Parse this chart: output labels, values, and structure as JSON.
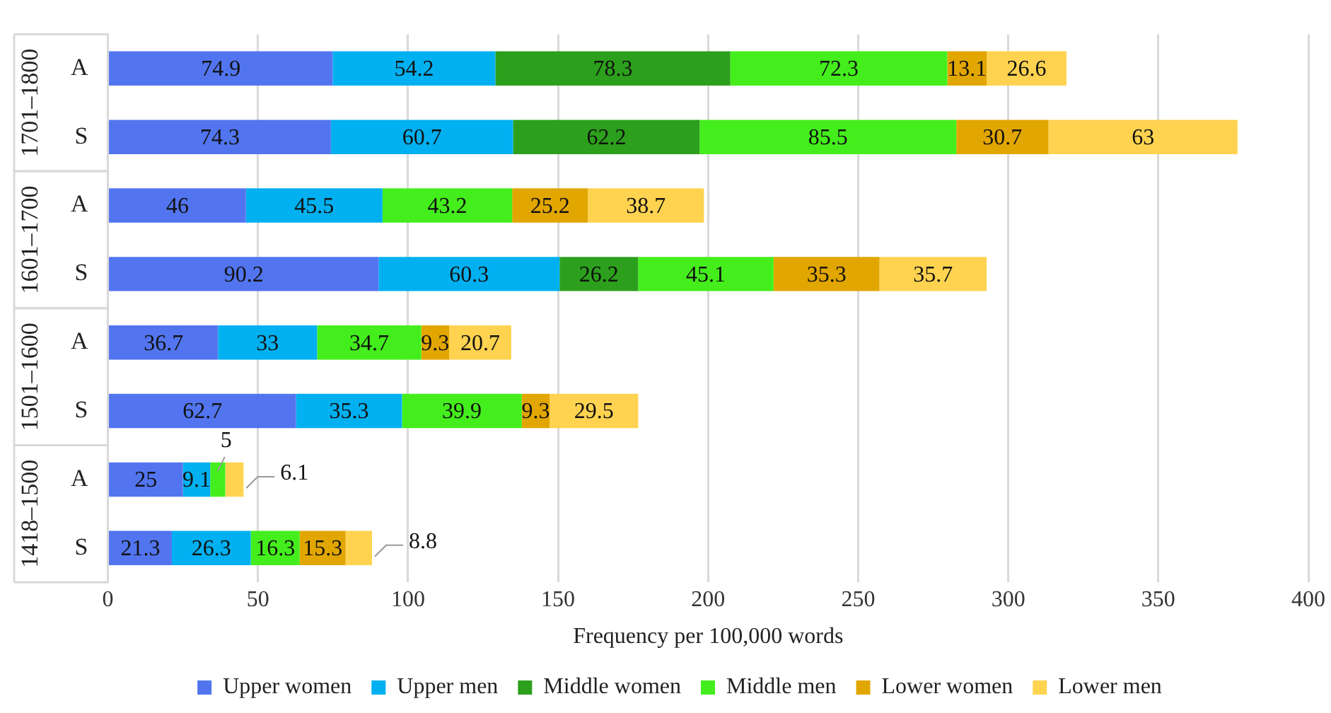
{
  "chart_data": {
    "type": "bar",
    "orientation": "horizontal",
    "stacked": true,
    "data_labels": true,
    "grid": "x",
    "legend": "bottom",
    "xlabel": "Frequency per 100,000 words",
    "categories": [
      "A",
      "S",
      "A",
      "S",
      "A",
      "S",
      "A",
      "S"
    ],
    "annotations": [
      "1701–1800",
      "1601–1700",
      "1501–1600",
      "1418–1500"
    ],
    "xlim": [
      0,
      400
    ],
    "xticks": [
      0,
      50,
      100,
      150,
      200,
      250,
      300,
      350,
      400
    ],
    "series": [
      {
        "name": "Upper women",
        "color": "#5275ef",
        "values": [
          74.9,
          74.3,
          46,
          90.2,
          36.7,
          62.7,
          25,
          21.3
        ]
      },
      {
        "name": "Upper men",
        "color": "#00b0f0",
        "values": [
          54.2,
          60.7,
          45.5,
          60.3,
          33,
          35.3,
          9.1,
          26.3
        ]
      },
      {
        "name": "Middle women",
        "color": "#2ca01c",
        "values": [
          78.3,
          62.2,
          null,
          26.2,
          null,
          null,
          null,
          null
        ]
      },
      {
        "name": "Middle men",
        "color": "#44ee1c",
        "values": [
          72.3,
          85.5,
          43.2,
          45.1,
          34.7,
          39.9,
          5,
          16.3
        ]
      },
      {
        "name": "Lower women",
        "color": "#e2a600",
        "values": [
          13.1,
          30.7,
          25.2,
          35.3,
          9.3,
          9.3,
          null,
          15.3
        ]
      },
      {
        "name": "Lower men",
        "color": "#ffd350",
        "values": [
          26.6,
          63,
          38.7,
          35.7,
          20.7,
          29.5,
          6.1,
          8.8
        ]
      }
    ]
  }
}
